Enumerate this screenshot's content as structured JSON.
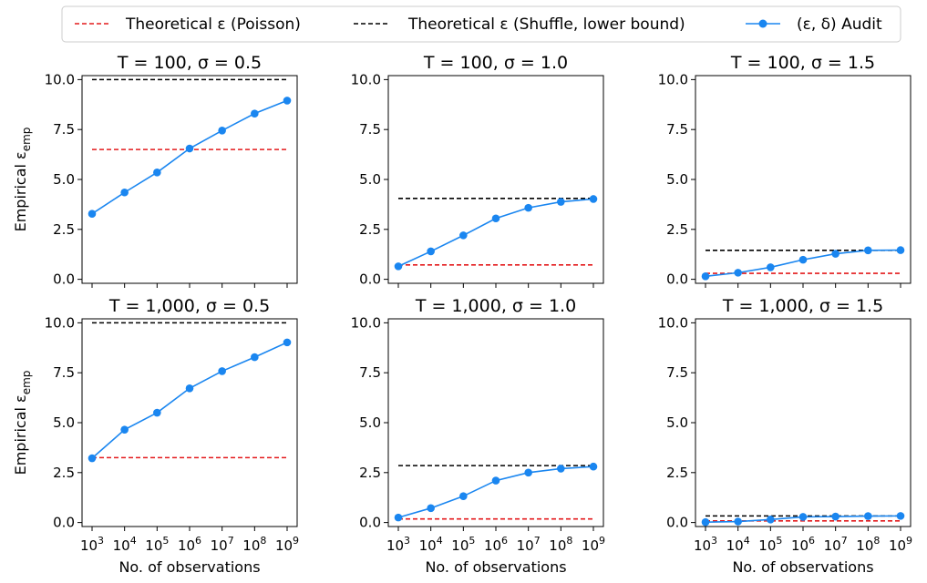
{
  "legend": {
    "items": [
      {
        "label": "Theoretical ε (Poisson)",
        "color": "#e31a1c",
        "style": "dashed"
      },
      {
        "label": "Theoretical ε (Shuffle, lower bound)",
        "color": "#000000",
        "style": "dashed"
      },
      {
        "label": "(ε, δ) Audit",
        "color": "#1a86f0",
        "style": "line-marker"
      }
    ]
  },
  "chart_data": [
    {
      "type": "line",
      "title": "T = 100, σ = 0.5",
      "ylabel": "Empirical ε_emp",
      "xlabel": "",
      "x": [
        3,
        4,
        5,
        6,
        7,
        8,
        9
      ],
      "x_tick_labels": [
        "10^3",
        "10^4",
        "10^5",
        "10^6",
        "10^7",
        "10^8",
        "10^9"
      ],
      "ylim": [
        -0.2,
        10.2
      ],
      "y_ticks": [
        "0.0",
        "2.5",
        "5.0",
        "7.5",
        "10.0"
      ],
      "series": [
        {
          "name": "(ε, δ) Audit",
          "values": [
            3.28,
            4.35,
            5.35,
            6.55,
            7.45,
            8.3,
            8.95
          ]
        }
      ],
      "poisson": 6.5,
      "shuffle": 10.0
    },
    {
      "type": "line",
      "title": "T = 100, σ = 1.0",
      "ylabel": "",
      "xlabel": "",
      "x": [
        3,
        4,
        5,
        6,
        7,
        8,
        9
      ],
      "x_tick_labels": [
        "10^3",
        "10^4",
        "10^5",
        "10^6",
        "10^7",
        "10^8",
        "10^9"
      ],
      "ylim": [
        -0.2,
        10.2
      ],
      "y_ticks": [
        "0.0",
        "2.5",
        "5.0",
        "7.5",
        "10.0"
      ],
      "series": [
        {
          "name": "(ε, δ) Audit",
          "values": [
            0.65,
            1.4,
            2.2,
            3.05,
            3.58,
            3.88,
            4.02
          ]
        }
      ],
      "poisson": 0.72,
      "shuffle": 4.05
    },
    {
      "type": "line",
      "title": "T = 100, σ = 1.5",
      "ylabel": "",
      "xlabel": "",
      "x": [
        3,
        4,
        5,
        6,
        7,
        8,
        9
      ],
      "x_tick_labels": [
        "10^3",
        "10^4",
        "10^5",
        "10^6",
        "10^7",
        "10^8",
        "10^9"
      ],
      "ylim": [
        -0.2,
        10.2
      ],
      "y_ticks": [
        "0.0",
        "2.5",
        "5.0",
        "7.5",
        "10.0"
      ],
      "series": [
        {
          "name": "(ε, δ) Audit",
          "values": [
            0.15,
            0.33,
            0.6,
            0.98,
            1.28,
            1.45,
            1.46
          ]
        }
      ],
      "poisson": 0.3,
      "shuffle": 1.45
    },
    {
      "type": "line",
      "title": "T = 1,000, σ = 0.5",
      "ylabel": "Empirical ε_emp",
      "xlabel": "No. of observations",
      "x": [
        3,
        4,
        5,
        6,
        7,
        8,
        9
      ],
      "x_tick_labels": [
        "10^3",
        "10^4",
        "10^5",
        "10^6",
        "10^7",
        "10^8",
        "10^9"
      ],
      "ylim": [
        -0.2,
        10.2
      ],
      "y_ticks": [
        "0.0",
        "2.5",
        "5.0",
        "7.5",
        "10.0"
      ],
      "series": [
        {
          "name": "(ε, δ) Audit",
          "values": [
            3.22,
            4.65,
            5.5,
            6.72,
            7.58,
            8.28,
            9.02
          ]
        }
      ],
      "poisson": 3.25,
      "shuffle": 10.0
    },
    {
      "type": "line",
      "title": "T = 1,000, σ = 1.0",
      "ylabel": "",
      "xlabel": "No. of observations",
      "x": [
        3,
        4,
        5,
        6,
        7,
        8,
        9
      ],
      "x_tick_labels": [
        "10^3",
        "10^4",
        "10^5",
        "10^6",
        "10^7",
        "10^8",
        "10^9"
      ],
      "ylim": [
        -0.2,
        10.2
      ],
      "y_ticks": [
        "0.0",
        "2.5",
        "5.0",
        "7.5",
        "10.0"
      ],
      "series": [
        {
          "name": "(ε, δ) Audit",
          "values": [
            0.25,
            0.72,
            1.32,
            2.1,
            2.5,
            2.7,
            2.8
          ]
        }
      ],
      "poisson": 0.18,
      "shuffle": 2.85
    },
    {
      "type": "line",
      "title": "T = 1,000, σ = 1.5",
      "ylabel": "",
      "xlabel": "No. of observations",
      "x": [
        3,
        4,
        5,
        6,
        7,
        8,
        9
      ],
      "x_tick_labels": [
        "10^3",
        "10^4",
        "10^5",
        "10^6",
        "10^7",
        "10^8",
        "10^9"
      ],
      "ylim": [
        -0.2,
        10.2
      ],
      "y_ticks": [
        "0.0",
        "2.5",
        "5.0",
        "7.5",
        "10.0"
      ],
      "series": [
        {
          "name": "(ε, δ) Audit",
          "values": [
            0.02,
            0.05,
            0.15,
            0.28,
            0.3,
            0.32,
            0.33
          ]
        }
      ],
      "poisson": 0.08,
      "shuffle": 0.33
    }
  ]
}
